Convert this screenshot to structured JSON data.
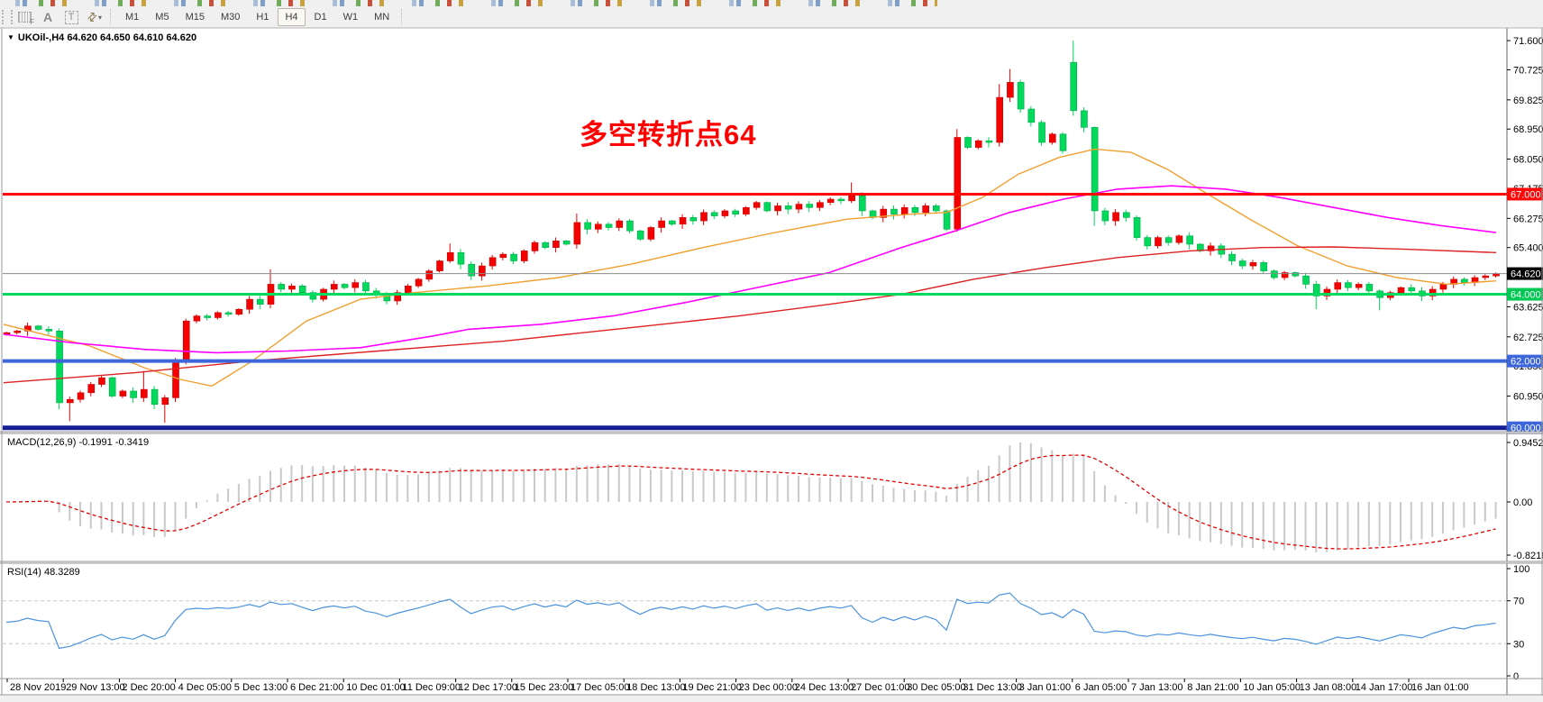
{
  "toolbar": {
    "tools": [
      {
        "name": "indicator-template",
        "glyph": "F"
      },
      {
        "name": "text-annotation",
        "glyph": "A"
      },
      {
        "name": "text-label",
        "glyph": "T"
      },
      {
        "name": "draw-arrows",
        "glyph": "⇄"
      },
      {
        "name": "dropdown-caret",
        "glyph": "▾"
      }
    ],
    "timeframes": [
      "M1",
      "M5",
      "M15",
      "M30",
      "H1",
      "H4",
      "D1",
      "W1",
      "MN"
    ],
    "active_timeframe": "H4"
  },
  "chart": {
    "symbol_line": "UKOil-,H4 64.620 64.650 64.610 64.620",
    "caret": "▼",
    "annotation_text": "多空转折点64",
    "annotation_color": "#FF0000"
  },
  "chart_data": {
    "type": "candlestick",
    "symbol": "UKOil-",
    "timeframe": "H4",
    "ohlc_display": {
      "open": "64.620",
      "high": "64.650",
      "low": "64.610",
      "close": "64.620"
    },
    "bull_color": "#f50000",
    "bear_color": "#00d95c",
    "price_axis_ticks": [
      {
        "label": "71.600",
        "price": 71.6
      },
      {
        "label": "70.725",
        "price": 70.725
      },
      {
        "label": "69.825",
        "price": 69.825
      },
      {
        "label": "68.950",
        "price": 68.95
      },
      {
        "label": "68.050",
        "price": 68.05
      },
      {
        "label": "67.175",
        "price": 67.175
      },
      {
        "label": "66.275",
        "price": 66.275
      },
      {
        "label": "65.400",
        "price": 65.4
      },
      {
        "label": "63.625",
        "price": 63.625
      },
      {
        "label": "62.725",
        "price": 62.725
      },
      {
        "label": "61.850",
        "price": 61.85
      },
      {
        "label": "60.950",
        "price": 60.95
      }
    ],
    "horizontal_lines": [
      {
        "label": "67.000",
        "price": 67.0,
        "color": "#fe0808",
        "width": 3,
        "box": "#fe0808"
      },
      {
        "label": "64.000",
        "price": 64.0,
        "color": "#00da5e",
        "width": 3,
        "box": "#00c853"
      },
      {
        "label": "62.000",
        "price": 62.0,
        "color": "#3d66da",
        "width": 4,
        "box": "#3d66da"
      },
      {
        "label": "60.000",
        "price": 60.0,
        "color": "#141f96",
        "width": 5,
        "box": "#3d66da"
      },
      {
        "label": "64.620",
        "price": 64.62,
        "color": "#8c8c8c",
        "width": 1,
        "box": "#000000",
        "current": true
      }
    ],
    "closes": [
      62.85,
      62.9,
      63.05,
      62.95,
      62.9,
      60.75,
      60.85,
      61.05,
      61.3,
      61.5,
      60.95,
      61.1,
      60.9,
      61.15,
      60.7,
      60.9,
      62.0,
      63.2,
      63.35,
      63.3,
      63.45,
      63.4,
      63.55,
      63.85,
      63.7,
      64.3,
      64.15,
      64.25,
      64.05,
      63.85,
      64.15,
      64.3,
      64.2,
      64.35,
      64.1,
      64.0,
      63.8,
      64.05,
      64.25,
      64.45,
      64.7,
      65.0,
      65.25,
      64.9,
      64.55,
      64.85,
      65.1,
      65.2,
      65.0,
      65.3,
      65.55,
      65.4,
      65.6,
      65.5,
      66.15,
      65.95,
      66.1,
      66.0,
      66.2,
      65.9,
      65.65,
      66.0,
      66.2,
      66.1,
      66.3,
      66.2,
      66.45,
      66.35,
      66.5,
      66.4,
      66.6,
      66.75,
      66.5,
      66.65,
      66.55,
      66.7,
      66.6,
      66.75,
      66.85,
      66.8,
      66.95,
      66.5,
      66.3,
      66.55,
      66.4,
      66.6,
      66.45,
      66.65,
      66.5,
      65.95,
      68.7,
      68.4,
      68.6,
      68.55,
      69.9,
      70.35,
      69.55,
      69.15,
      68.55,
      68.8,
      68.3,
      69.5,
      69.0,
      66.5,
      66.2,
      66.45,
      66.3,
      65.7,
      65.45,
      65.7,
      65.55,
      65.75,
      65.5,
      65.3,
      65.45,
      65.2,
      65.0,
      64.85,
      64.95,
      64.7,
      64.5,
      64.65,
      64.55,
      64.3,
      63.95,
      64.15,
      64.35,
      64.2,
      64.3,
      64.1,
      63.9,
      64.05,
      64.2,
      64.1,
      63.95,
      64.15,
      64.3,
      64.45,
      64.35,
      64.5,
      64.55,
      64.62
    ],
    "high_low_overrides": {
      "5": {
        "low": 60.55
      },
      "6": {
        "low": 60.2
      },
      "13": {
        "high": 61.7
      },
      "15": {
        "low": 60.15
      },
      "25": {
        "high": 64.75
      },
      "42": {
        "high": 65.52
      },
      "54": {
        "high": 66.42
      },
      "80": {
        "high": 67.35
      },
      "90": {
        "high": 68.95
      },
      "94": {
        "high": 70.3
      },
      "95": {
        "high": 70.75
      },
      "101": {
        "open": 70.95,
        "high": 71.6,
        "low": 69.35
      },
      "103": {
        "low": 66.05
      },
      "124": {
        "low": 63.55
      },
      "130": {
        "low": 63.52
      }
    },
    "moving_averages": [
      {
        "name": "fast-ma",
        "color": "#f0a030",
        "width": 1.4,
        "points": [
          [
            4,
            63.1
          ],
          [
            100,
            62.45
          ],
          [
            160,
            61.8
          ],
          [
            200,
            61.45
          ],
          [
            235,
            61.25
          ],
          [
            280,
            62.0
          ],
          [
            340,
            63.2
          ],
          [
            400,
            63.85
          ],
          [
            460,
            64.05
          ],
          [
            540,
            64.25
          ],
          [
            620,
            64.5
          ],
          [
            700,
            64.9
          ],
          [
            780,
            65.4
          ],
          [
            860,
            65.85
          ],
          [
            940,
            66.25
          ],
          [
            1010,
            66.4
          ],
          [
            1050,
            66.45
          ],
          [
            1090,
            66.9
          ],
          [
            1130,
            67.6
          ],
          [
            1175,
            68.1
          ],
          [
            1215,
            68.35
          ],
          [
            1255,
            68.25
          ],
          [
            1295,
            67.75
          ],
          [
            1340,
            67.0
          ],
          [
            1390,
            66.2
          ],
          [
            1440,
            65.45
          ],
          [
            1495,
            64.85
          ],
          [
            1550,
            64.5
          ],
          [
            1605,
            64.3
          ],
          [
            1660,
            64.4
          ]
        ]
      },
      {
        "name": "mid-ma",
        "color": "#ff00ff",
        "width": 1.6,
        "points": [
          [
            4,
            62.8
          ],
          [
            80,
            62.55
          ],
          [
            160,
            62.35
          ],
          [
            240,
            62.25
          ],
          [
            320,
            62.3
          ],
          [
            400,
            62.4
          ],
          [
            480,
            62.75
          ],
          [
            520,
            62.95
          ],
          [
            600,
            63.1
          ],
          [
            680,
            63.35
          ],
          [
            760,
            63.75
          ],
          [
            840,
            64.2
          ],
          [
            920,
            64.65
          ],
          [
            1000,
            65.4
          ],
          [
            1060,
            65.9
          ],
          [
            1120,
            66.45
          ],
          [
            1180,
            66.85
          ],
          [
            1240,
            67.15
          ],
          [
            1300,
            67.25
          ],
          [
            1360,
            67.15
          ],
          [
            1420,
            66.9
          ],
          [
            1480,
            66.6
          ],
          [
            1540,
            66.3
          ],
          [
            1600,
            66.05
          ],
          [
            1660,
            65.85
          ]
        ]
      },
      {
        "name": "slow-ma",
        "color": "#dd2222",
        "width": 1.4,
        "points": [
          [
            4,
            61.35
          ],
          [
            150,
            61.65
          ],
          [
            280,
            62.0
          ],
          [
            420,
            62.3
          ],
          [
            560,
            62.6
          ],
          [
            700,
            63.0
          ],
          [
            820,
            63.35
          ],
          [
            920,
            63.7
          ],
          [
            1000,
            64.0
          ],
          [
            1080,
            64.45
          ],
          [
            1160,
            64.8
          ],
          [
            1240,
            65.1
          ],
          [
            1320,
            65.3
          ],
          [
            1400,
            65.4
          ],
          [
            1480,
            65.42
          ],
          [
            1560,
            65.35
          ],
          [
            1660,
            65.25
          ]
        ]
      }
    ],
    "macd": {
      "label": "MACD(12,26,9) -0.1991 -0.3419",
      "fast": 12,
      "slow": 26,
      "signal_period": 9,
      "current_main": -0.1991,
      "current_signal": -0.3419,
      "axis_ticks": [
        "0.9452",
        "0.00",
        "-0.8218"
      ],
      "histogram_color": "#c9c9c9",
      "signal_color": "#e00000"
    },
    "rsi": {
      "label": "RSI(14) 48.3289",
      "period": 14,
      "current": 48.3289,
      "axis_ticks": [
        "100",
        "70",
        "30",
        "0"
      ],
      "levels": [
        70,
        30
      ],
      "line_color": "#4b93dd"
    },
    "date_labels": [
      "28 Nov 2019",
      "29 Nov 13:00",
      "2 Dec 20:00",
      "4 Dec 05:00",
      "5 Dec 13:00",
      "6 Dec 21:00",
      "10 Dec 01:00",
      "11 Dec 09:00",
      "12 Dec 17:00",
      "15 Dec 23:00",
      "17 Dec 05:00",
      "18 Dec 13:00",
      "19 Dec 21:00",
      "23 Dec 00:00",
      "24 Dec 13:00",
      "27 Dec 01:00",
      "30 Dec 05:00",
      "31 Dec 13:00",
      "3 Jan 01:00",
      "6 Jan 05:00",
      "7 Jan 13:00",
      "8 Jan 21:00",
      "10 Jan 05:00",
      "13 Jan 08:00",
      "14 Jan 17:00",
      "16 Jan 01:00"
    ]
  }
}
